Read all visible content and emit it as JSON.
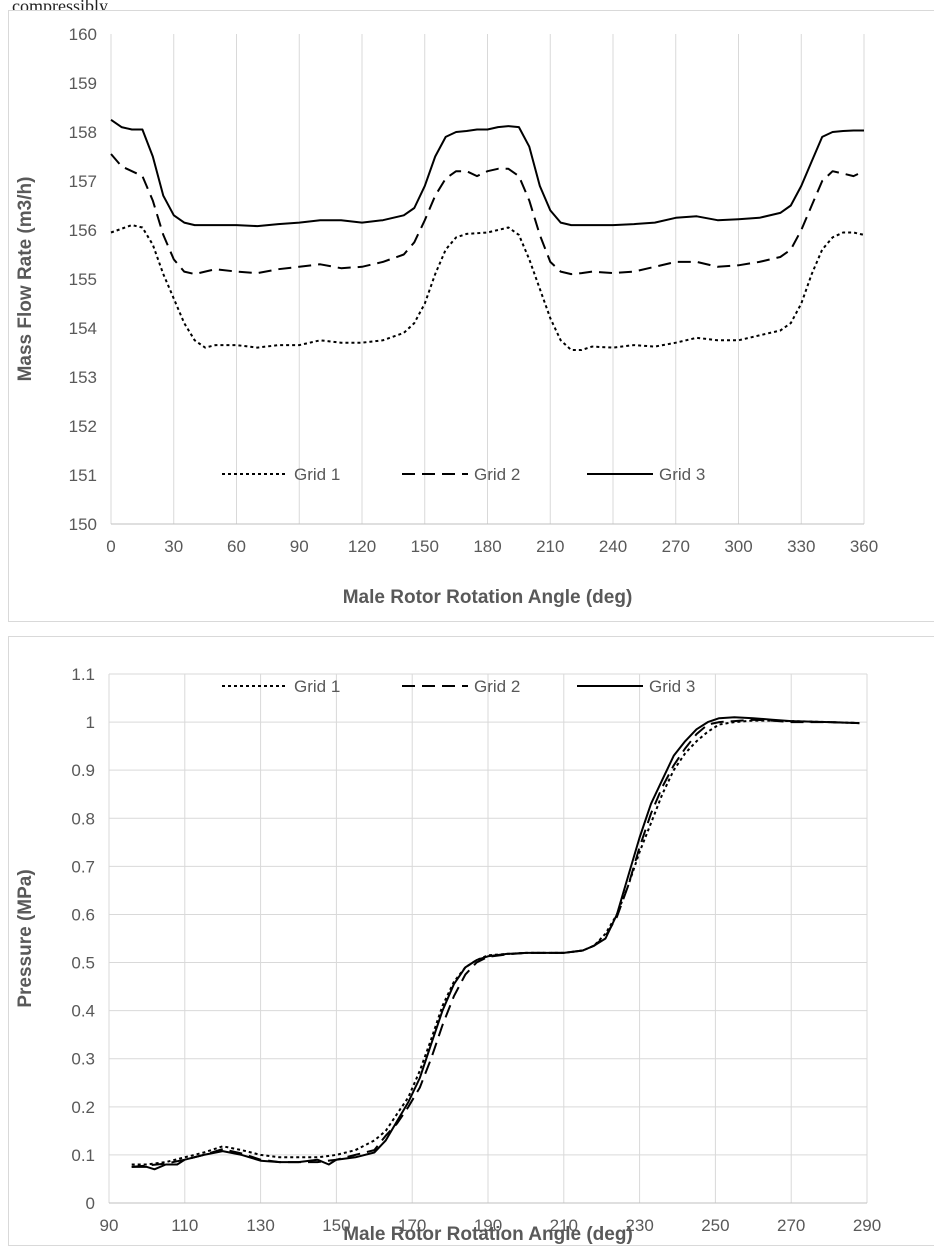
{
  "caption": "compressibly",
  "chart_data": [
    {
      "type": "line",
      "title": "",
      "xlabel": "Male Rotor Rotation Angle (deg)",
      "ylabel": "Mass Flow Rate (m3/h)",
      "xlim": [
        0,
        360
      ],
      "ylim": [
        150,
        160
      ],
      "xticks": [
        0,
        30,
        60,
        90,
        120,
        150,
        180,
        210,
        240,
        270,
        300,
        330,
        360
      ],
      "yticks": [
        150,
        151,
        152,
        153,
        154,
        155,
        156,
        157,
        158,
        159,
        160
      ],
      "grid": "vertical",
      "legend_position": "bottom-center inside",
      "series": [
        {
          "name": "Grid 1",
          "line_style": "dotted",
          "x": [
            0,
            10,
            15,
            20,
            25,
            30,
            35,
            40,
            45,
            50,
            60,
            70,
            80,
            90,
            100,
            110,
            120,
            130,
            140,
            145,
            150,
            155,
            160,
            165,
            170,
            180,
            185,
            190,
            195,
            200,
            205,
            210,
            215,
            220,
            225,
            230,
            240,
            250,
            260,
            270,
            280,
            290,
            300,
            310,
            320,
            325,
            330,
            335,
            340,
            345,
            350,
            355,
            360
          ],
          "y": [
            155.95,
            156.1,
            156.05,
            155.7,
            155.1,
            154.6,
            154.1,
            153.75,
            153.6,
            153.65,
            153.65,
            153.6,
            153.65,
            153.65,
            153.75,
            153.7,
            153.7,
            153.75,
            153.9,
            154.1,
            154.5,
            155.1,
            155.6,
            155.85,
            155.92,
            155.95,
            156.0,
            156.05,
            155.9,
            155.4,
            154.8,
            154.2,
            153.75,
            153.55,
            153.55,
            153.62,
            153.6,
            153.65,
            153.62,
            153.7,
            153.8,
            153.75,
            153.75,
            153.85,
            153.95,
            154.1,
            154.5,
            155.1,
            155.6,
            155.85,
            155.95,
            155.95,
            155.9
          ]
        },
        {
          "name": "Grid 2",
          "line_style": "dashed",
          "x": [
            0,
            5,
            10,
            15,
            20,
            25,
            30,
            35,
            40,
            45,
            50,
            60,
            70,
            80,
            90,
            100,
            110,
            120,
            130,
            140,
            145,
            150,
            155,
            160,
            165,
            170,
            175,
            180,
            185,
            190,
            195,
            200,
            205,
            210,
            215,
            220,
            225,
            230,
            240,
            250,
            260,
            270,
            280,
            290,
            300,
            310,
            320,
            325,
            330,
            335,
            340,
            345,
            350,
            355,
            360
          ],
          "y": [
            157.55,
            157.3,
            157.2,
            157.1,
            156.6,
            155.9,
            155.4,
            155.15,
            155.1,
            155.15,
            155.2,
            155.15,
            155.12,
            155.2,
            155.25,
            155.3,
            155.22,
            155.25,
            155.35,
            155.5,
            155.75,
            156.2,
            156.7,
            157.05,
            157.2,
            157.2,
            157.1,
            157.2,
            157.25,
            157.25,
            157.1,
            156.6,
            155.9,
            155.35,
            155.15,
            155.1,
            155.12,
            155.15,
            155.12,
            155.15,
            155.25,
            155.35,
            155.35,
            155.25,
            155.28,
            155.35,
            155.45,
            155.6,
            156.0,
            156.5,
            157.0,
            157.2,
            157.15,
            157.1,
            157.2
          ]
        },
        {
          "name": "Grid 3",
          "line_style": "solid",
          "x": [
            0,
            5,
            10,
            15,
            20,
            25,
            30,
            35,
            40,
            45,
            50,
            60,
            70,
            80,
            90,
            100,
            110,
            120,
            130,
            140,
            145,
            150,
            155,
            160,
            165,
            170,
            175,
            180,
            185,
            190,
            195,
            200,
            205,
            210,
            215,
            220,
            225,
            230,
            240,
            250,
            260,
            270,
            280,
            290,
            300,
            310,
            320,
            325,
            330,
            335,
            340,
            345,
            350,
            355,
            360
          ],
          "y": [
            158.25,
            158.1,
            158.05,
            158.05,
            157.5,
            156.7,
            156.3,
            156.15,
            156.1,
            156.1,
            156.1,
            156.1,
            156.08,
            156.12,
            156.15,
            156.2,
            156.2,
            156.15,
            156.2,
            156.3,
            156.45,
            156.9,
            157.5,
            157.9,
            158.0,
            158.02,
            158.05,
            158.05,
            158.1,
            158.12,
            158.1,
            157.7,
            156.9,
            156.4,
            156.15,
            156.1,
            156.1,
            156.1,
            156.1,
            156.12,
            156.15,
            156.25,
            156.28,
            156.2,
            156.22,
            156.25,
            156.35,
            156.5,
            156.9,
            157.4,
            157.9,
            158.0,
            158.02,
            158.03,
            158.03
          ]
        }
      ]
    },
    {
      "type": "line",
      "title": "",
      "xlabel": "Male Rotor Rotation Angle (deg)",
      "ylabel": "Pressure (MPa)",
      "xlim": [
        90,
        290
      ],
      "ylim": [
        0,
        1.1
      ],
      "xticks": [
        90,
        110,
        130,
        150,
        170,
        190,
        210,
        230,
        250,
        270,
        290
      ],
      "yticks": [
        0,
        0.1,
        0.2,
        0.3,
        0.4,
        0.5,
        0.6,
        0.7,
        0.8,
        0.9,
        1,
        1.1
      ],
      "grid": "both",
      "legend_position": "top-center inside",
      "series": [
        {
          "name": "Grid 1",
          "line_style": "dotted",
          "x": [
            96,
            100,
            105,
            110,
            115,
            120,
            125,
            130,
            135,
            140,
            145,
            150,
            155,
            160,
            163,
            166,
            169,
            172,
            175,
            178,
            181,
            184,
            187,
            190,
            195,
            200,
            210,
            215,
            218,
            221,
            224,
            227,
            230,
            233,
            236,
            239,
            242,
            245,
            248,
            251,
            255,
            260,
            265,
            270,
            280,
            288
          ],
          "y": [
            0.08,
            0.08,
            0.085,
            0.095,
            0.105,
            0.118,
            0.11,
            0.1,
            0.095,
            0.095,
            0.095,
            0.1,
            0.11,
            0.13,
            0.15,
            0.185,
            0.22,
            0.275,
            0.34,
            0.41,
            0.46,
            0.49,
            0.505,
            0.515,
            0.518,
            0.52,
            0.52,
            0.525,
            0.535,
            0.56,
            0.6,
            0.66,
            0.73,
            0.79,
            0.85,
            0.9,
            0.935,
            0.96,
            0.98,
            0.995,
            1.0,
            1.003,
            1.003,
            1.002,
            1.0,
            0.998
          ]
        },
        {
          "name": "Grid 2",
          "line_style": "dashed",
          "x": [
            96,
            100,
            105,
            110,
            115,
            120,
            125,
            130,
            135,
            140,
            145,
            150,
            155,
            160,
            163,
            166,
            169,
            172,
            175,
            178,
            181,
            184,
            187,
            190,
            195,
            200,
            210,
            215,
            218,
            221,
            224,
            227,
            230,
            233,
            236,
            239,
            242,
            245,
            248,
            251,
            255,
            260,
            265,
            270,
            280,
            288
          ],
          "y": [
            0.075,
            0.078,
            0.082,
            0.09,
            0.1,
            0.112,
            0.103,
            0.09,
            0.085,
            0.085,
            0.085,
            0.09,
            0.1,
            0.11,
            0.14,
            0.165,
            0.2,
            0.24,
            0.3,
            0.37,
            0.43,
            0.475,
            0.5,
            0.512,
            0.517,
            0.52,
            0.52,
            0.525,
            0.535,
            0.555,
            0.595,
            0.66,
            0.74,
            0.81,
            0.865,
            0.91,
            0.945,
            0.975,
            0.995,
            1.0,
            1.002,
            1.005,
            1.003,
            1.0,
            1.0,
            0.998
          ]
        },
        {
          "name": "Grid 3",
          "line_style": "solid",
          "x": [
            96,
            100,
            102,
            105,
            108,
            110,
            115,
            120,
            125,
            130,
            135,
            140,
            145,
            148,
            150,
            155,
            160,
            163,
            166,
            169,
            172,
            175,
            178,
            181,
            184,
            187,
            190,
            195,
            200,
            210,
            215,
            218,
            221,
            224,
            227,
            230,
            233,
            236,
            239,
            242,
            245,
            248,
            251,
            255,
            260,
            265,
            270,
            280,
            288
          ],
          "y": [
            0.075,
            0.075,
            0.07,
            0.08,
            0.08,
            0.09,
            0.1,
            0.108,
            0.1,
            0.088,
            0.085,
            0.085,
            0.09,
            0.08,
            0.09,
            0.095,
            0.105,
            0.13,
            0.17,
            0.21,
            0.26,
            0.33,
            0.4,
            0.455,
            0.49,
            0.505,
            0.513,
            0.518,
            0.52,
            0.52,
            0.525,
            0.535,
            0.55,
            0.6,
            0.68,
            0.76,
            0.83,
            0.88,
            0.93,
            0.96,
            0.985,
            1.0,
            1.008,
            1.01,
            1.008,
            1.005,
            1.002,
            1.0,
            0.998
          ]
        }
      ]
    }
  ]
}
